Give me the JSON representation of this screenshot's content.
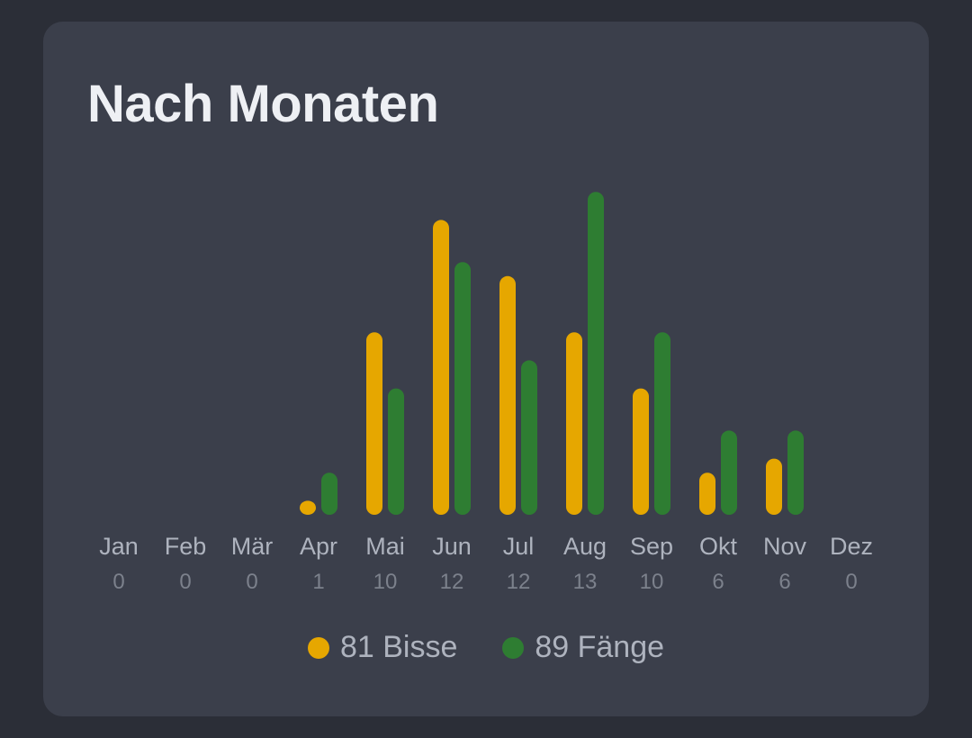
{
  "card": {
    "title": "Nach Monaten"
  },
  "colors": {
    "bites": "#e6a700",
    "catches": "#2e7d32"
  },
  "chart_data": {
    "type": "bar",
    "title": "Nach Monaten",
    "categories": [
      "Jan",
      "Feb",
      "Mär",
      "Apr",
      "Mai",
      "Jun",
      "Jul",
      "Aug",
      "Sep",
      "Okt",
      "Nov",
      "Dez"
    ],
    "category_counts": [
      0,
      0,
      0,
      1,
      10,
      12,
      12,
      13,
      10,
      6,
      6,
      0
    ],
    "series": [
      {
        "name": "Bisse",
        "values": [
          0,
          0,
          0,
          1,
          13,
          21,
          17,
          13,
          9,
          3,
          4,
          0
        ]
      },
      {
        "name": "Fänge",
        "values": [
          0,
          0,
          0,
          3,
          9,
          18,
          11,
          23,
          13,
          6,
          6,
          0
        ]
      }
    ],
    "ylim": [
      0,
      23
    ],
    "grid": false,
    "legend_position": "bottom-center"
  },
  "legend": [
    {
      "count": "81",
      "label": "Bisse",
      "text": "81 Bisse",
      "color": "#e6a700"
    },
    {
      "count": "89",
      "label": "Fänge",
      "text": "89 Fänge",
      "color": "#2e7d32"
    }
  ]
}
